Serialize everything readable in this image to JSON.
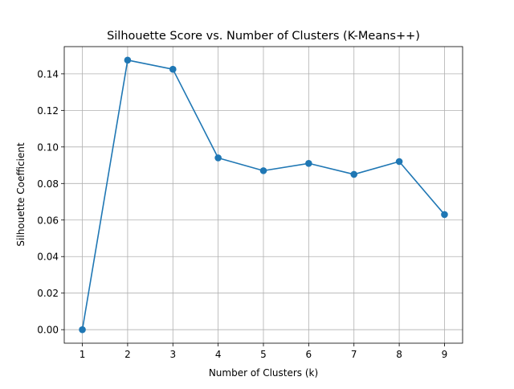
{
  "chart_data": {
    "type": "line",
    "title": "Silhouette Score vs. Number of Clusters (K-Means++)",
    "xlabel": "Number of Clusters (k)",
    "ylabel": "Silhouette Coefficient",
    "x": [
      1,
      2,
      3,
      4,
      5,
      6,
      7,
      8,
      9
    ],
    "series": [
      {
        "values": [
          0.0,
          0.1475,
          0.1425,
          0.094,
          0.087,
          0.091,
          0.085,
          0.092,
          0.063
        ],
        "color": "#1f77b4",
        "marker": "circle"
      }
    ],
    "xlim": [
      0.6,
      9.4
    ],
    "ylim": [
      -0.0074,
      0.1549
    ],
    "xticks": [
      "1",
      "2",
      "3",
      "4",
      "5",
      "6",
      "7",
      "8",
      "9"
    ],
    "yticks": [
      "0.00",
      "0.02",
      "0.04",
      "0.06",
      "0.08",
      "0.10",
      "0.12",
      "0.14"
    ],
    "grid": true,
    "legend": "none"
  }
}
